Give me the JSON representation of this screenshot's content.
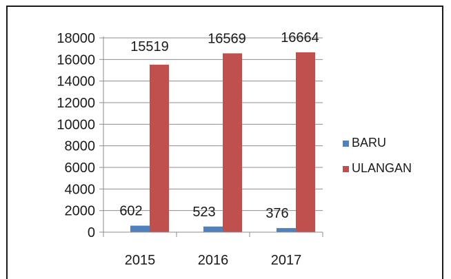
{
  "chart_data": {
    "type": "bar",
    "categories": [
      "2015",
      "2016",
      "2017"
    ],
    "series": [
      {
        "name": "BARU",
        "values": [
          602,
          523,
          376
        ],
        "color": "#4F81BD"
      },
      {
        "name": "ULANGAN",
        "values": [
          15519,
          16569,
          16664
        ],
        "color": "#C0504D"
      }
    ],
    "ylim": [
      0,
      18000
    ],
    "yticks": [
      "0",
      "2000",
      "4000",
      "6000",
      "8000",
      "10000",
      "12000",
      "14000",
      "16000",
      "18000"
    ],
    "data_labels": [
      "602",
      "15519",
      "523",
      "16569",
      "376",
      "16664"
    ],
    "grid": true,
    "legend_position": "right"
  }
}
